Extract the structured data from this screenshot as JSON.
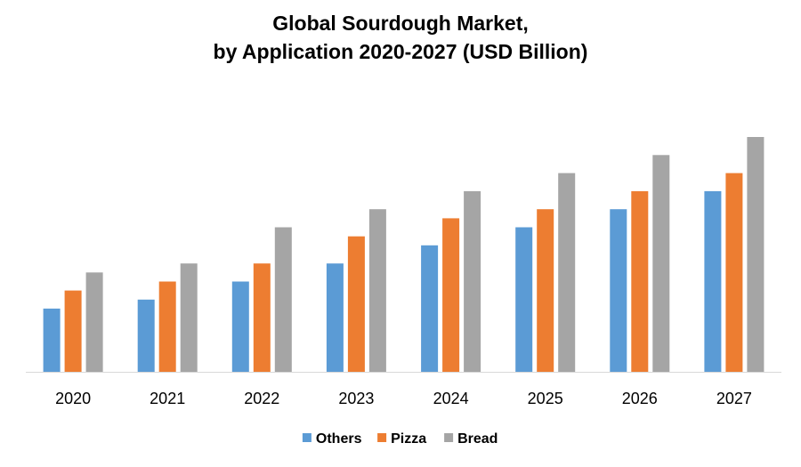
{
  "chart_data": {
    "type": "bar",
    "title_line1": "Global Sourdough Market,",
    "title_line2": "by Application 2020-2027 (USD Billion)",
    "xlabel": "",
    "ylabel": "",
    "categories": [
      "2020",
      "2021",
      "2022",
      "2023",
      "2024",
      "2025",
      "2026",
      "2027"
    ],
    "series": [
      {
        "name": "Others",
        "color": "#5B9BD5",
        "values": [
          3.5,
          4.0,
          5.0,
          6.0,
          7.0,
          8.0,
          9.0,
          10.0
        ]
      },
      {
        "name": "Pizza",
        "color": "#ED7D31",
        "values": [
          4.5,
          5.0,
          6.0,
          7.5,
          8.5,
          9.0,
          10.0,
          11.0
        ]
      },
      {
        "name": "Bread",
        "color": "#A5A5A5",
        "values": [
          5.5,
          6.0,
          8.0,
          9.0,
          10.0,
          11.0,
          12.0,
          13.0
        ]
      }
    ],
    "ylim": [
      0,
      13
    ],
    "y_axis_visible": false,
    "grid": false,
    "legend_position": "bottom"
  }
}
